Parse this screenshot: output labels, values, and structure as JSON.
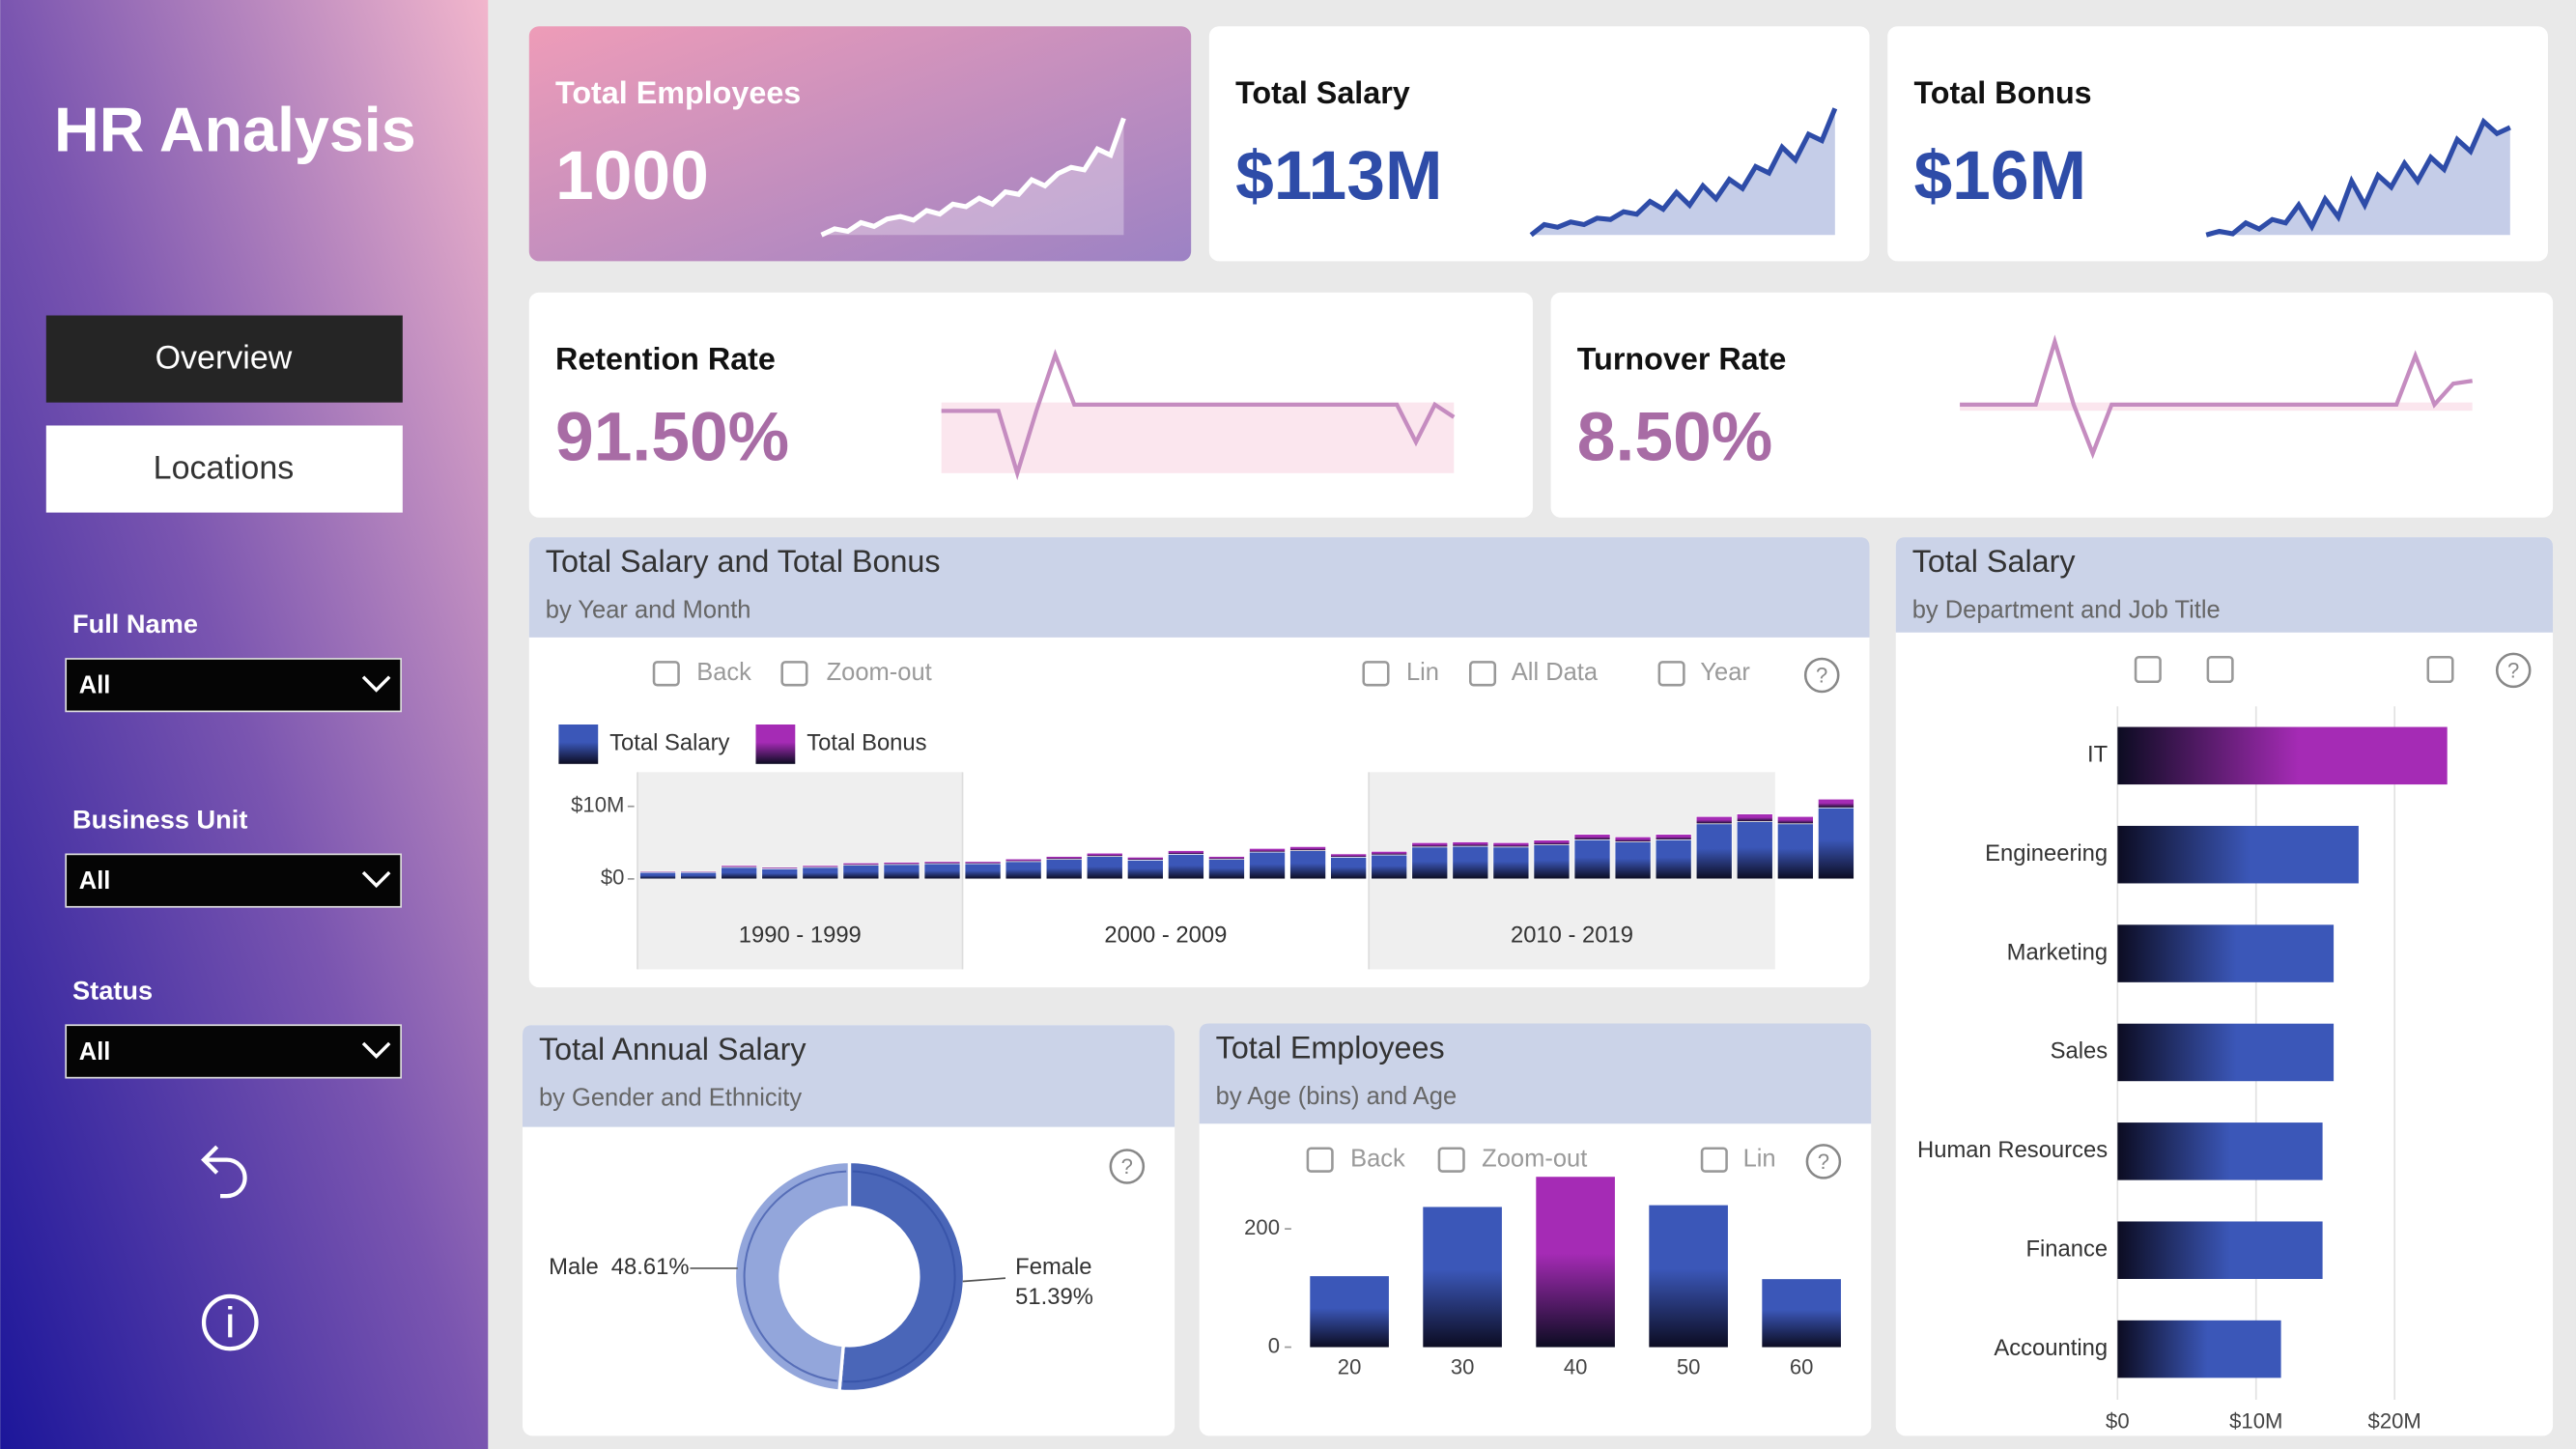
{
  "sidebar": {
    "title": "HR Analysis",
    "nav": [
      "Overview",
      "Locations"
    ],
    "filters": [
      {
        "label": "Full Name",
        "value": "All"
      },
      {
        "label": "Business Unit",
        "value": "All"
      },
      {
        "label": "Status",
        "value": "All"
      }
    ]
  },
  "kpis": [
    {
      "label": "Total Employees",
      "value": "1000",
      "trend": [
        0.05,
        0.1,
        0.08,
        0.15,
        0.12,
        0.18,
        0.2,
        0.17,
        0.25,
        0.22,
        0.3,
        0.28,
        0.35,
        0.3,
        0.4,
        0.38,
        0.5,
        0.45,
        0.55,
        0.6,
        0.58,
        0.75,
        0.7,
        1
      ]
    },
    {
      "label": "Total Salary",
      "value": "$113M",
      "trend": [
        0.02,
        0.1,
        0.08,
        0.12,
        0.1,
        0.15,
        0.14,
        0.2,
        0.18,
        0.28,
        0.22,
        0.35,
        0.25,
        0.4,
        0.3,
        0.45,
        0.38,
        0.55,
        0.5,
        0.7,
        0.6,
        0.8,
        0.75,
        1
      ]
    },
    {
      "label": "Total Bonus",
      "value": "$16M",
      "trend": [
        0.05,
        0.08,
        0.06,
        0.15,
        0.1,
        0.18,
        0.15,
        0.3,
        0.12,
        0.35,
        0.2,
        0.5,
        0.3,
        0.55,
        0.45,
        0.65,
        0.5,
        0.7,
        0.6,
        0.85,
        0.75,
        1,
        0.9,
        0.95
      ]
    },
    {
      "label": "Retention Rate",
      "value": "91.50%",
      "trend": [
        0.55,
        0.55,
        0.55,
        0.55,
        0.05,
        0.55,
        1,
        0.6,
        0.6,
        0.6,
        0.6,
        0.6,
        0.6,
        0.6,
        0.6,
        0.6,
        0.6,
        0.6,
        0.6,
        0.6,
        0.6,
        0.6,
        0.6,
        0.6,
        0.6,
        0.3,
        0.6,
        0.5
      ]
    },
    {
      "label": "Turnover Rate",
      "value": "8.50%",
      "trend": [
        0.55,
        0.55,
        0.55,
        0.55,
        0.55,
        1,
        0.55,
        0.2,
        0.55,
        0.55,
        0.55,
        0.55,
        0.55,
        0.55,
        0.55,
        0.55,
        0.55,
        0.55,
        0.55,
        0.55,
        0.55,
        0.55,
        0.55,
        0.55,
        0.9,
        0.55,
        0.7,
        0.72
      ]
    }
  ],
  "chart_data": [
    {
      "type": "stacked_bar",
      "title": "Total Salary and Total Bonus",
      "subtitle": "by Year and Month",
      "toolbar": [
        "Back",
        "Zoom-out",
        "Lin",
        "All Data",
        "Year"
      ],
      "categories": [
        null,
        null,
        null,
        null,
        null,
        null,
        null,
        null,
        null,
        null,
        null,
        null,
        null,
        null,
        null,
        null,
        null,
        null,
        null,
        null,
        null,
        null,
        null,
        null,
        null,
        null,
        null,
        null,
        null,
        null
      ],
      "x_groups": [
        "1990 - 1999",
        "2000 - 2009",
        "2010 - 2019"
      ],
      "series": [
        {
          "name": "Total Salary",
          "color": "#3b57b8",
          "values": [
            0.9,
            0.9,
            1.6,
            1.4,
            1.6,
            1.9,
            2.0,
            2.1,
            2.1,
            2.4,
            2.7,
            3.1,
            2.6,
            3.4,
            2.7,
            3.7,
            3.9,
            3.0,
            3.3,
            4.4,
            4.5,
            4.4,
            4.7,
            5.4,
            5.1,
            5.4,
            7.6,
            7.9,
            7.6,
            9.8
          ]
        },
        {
          "name": "Total Bonus",
          "color": "#a52bb5",
          "values": [
            0.15,
            0.15,
            0.25,
            0.2,
            0.25,
            0.3,
            0.3,
            0.3,
            0.3,
            0.35,
            0.4,
            0.45,
            0.4,
            0.5,
            0.4,
            0.5,
            0.55,
            0.45,
            0.5,
            0.6,
            0.6,
            0.6,
            0.65,
            0.75,
            0.7,
            0.75,
            1.0,
            1.05,
            1.0,
            1.2
          ]
        }
      ],
      "ylim": [
        0,
        12
      ],
      "yticks": [
        {
          "value": 0,
          "label": "$0"
        },
        {
          "value": 10,
          "label": "$10M"
        }
      ]
    },
    {
      "type": "barh",
      "title": "Total Salary",
      "subtitle": "by Department and Job Title",
      "categories": [
        "IT",
        "Engineering",
        "Marketing",
        "Sales",
        "Human Resources",
        "Finance",
        "Accounting"
      ],
      "values": [
        23.8,
        17.4,
        15.6,
        15.6,
        14.8,
        14.8,
        11.8
      ],
      "colors": [
        "#a52bb5",
        "#3b57b8",
        "#3b57b8",
        "#3b57b8",
        "#3b57b8",
        "#3b57b8",
        "#3b57b8"
      ],
      "xlim": [
        0,
        30
      ],
      "xticks": [
        {
          "value": 0,
          "label": "$0"
        },
        {
          "value": 10,
          "label": "$10M"
        },
        {
          "value": 20,
          "label": "$20M"
        }
      ]
    },
    {
      "type": "donut",
      "title": "Total Annual Salary",
      "subtitle": "by Gender and Ethnicity",
      "categories": [
        "Male",
        "Female"
      ],
      "values": [
        48.61,
        51.39
      ],
      "value_labels": [
        "48.61%",
        "51.39%"
      ],
      "colors": [
        "#93a6db",
        "#4a66b8"
      ]
    },
    {
      "type": "bar",
      "title": "Total Employees",
      "subtitle": "by Age (bins) and Age",
      "toolbar": [
        "Back",
        "Zoom-out",
        "Lin"
      ],
      "categories": [
        "20",
        "30",
        "40",
        "50",
        "60"
      ],
      "values": [
        120,
        237,
        288,
        240,
        115
      ],
      "colors": [
        "#3b57b8",
        "#3b57b8",
        "#a52bb5",
        "#3b57b8",
        "#3b57b8"
      ],
      "ylim": [
        0,
        300
      ],
      "yticks": [
        0,
        200
      ]
    }
  ]
}
